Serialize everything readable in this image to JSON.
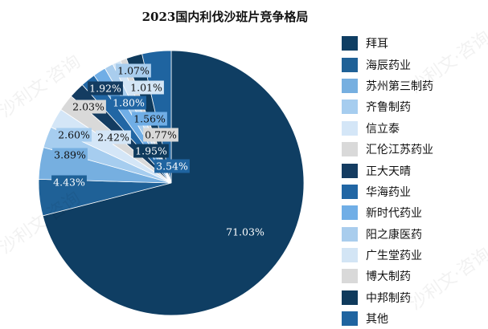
{
  "chart_data": {
    "type": "pie",
    "title": "2023国内利伐沙班片竞争格局",
    "legend_position": "right",
    "slices": [
      {
        "name": "拜耳",
        "value": 71.03,
        "label": "71.03%",
        "color": "#0f3e63"
      },
      {
        "name": "海辰药业",
        "value": 4.43,
        "label": "4.43%",
        "color": "#1f6197"
      },
      {
        "name": "苏州第三制药",
        "value": 3.89,
        "label": "3.89%",
        "color": "#76afe0"
      },
      {
        "name": "齐鲁制药",
        "value": 2.6,
        "label": "2.60%",
        "color": "#a6cdef"
      },
      {
        "name": "信立泰",
        "value": 2.42,
        "label": "2.42%",
        "color": "#d4e6f7"
      },
      {
        "name": "汇伦江苏药业",
        "value": 2.03,
        "label": "2.03%",
        "color": "#d9d9d9"
      },
      {
        "name": "正大天晴",
        "value": 1.92,
        "label": "1.92%",
        "color": "#143c61"
      },
      {
        "name": "华海药业",
        "value": 1.8,
        "label": "1.80%",
        "color": "#2166a4"
      },
      {
        "name": "新时代药业",
        "value": 1.56,
        "label": "1.56%",
        "color": "#70aee6"
      },
      {
        "name": "阳之康医药",
        "value": 1.07,
        "label": "1.07%",
        "color": "#a9cded"
      },
      {
        "name": "广生堂药业",
        "value": 1.01,
        "label": "1.01%",
        "color": "#d3e5f5"
      },
      {
        "name": "博大制药",
        "value": 0.77,
        "label": "0.77%",
        "color": "#d9d9d9"
      },
      {
        "name": "中邦制药",
        "value": 1.95,
        "label": "1.95%",
        "color": "#0f3a5c"
      },
      {
        "name": "其他",
        "value": 3.54,
        "label": "3.54%",
        "color": "#1f64a0"
      }
    ]
  },
  "watermark_text": "沙利文·咨询"
}
